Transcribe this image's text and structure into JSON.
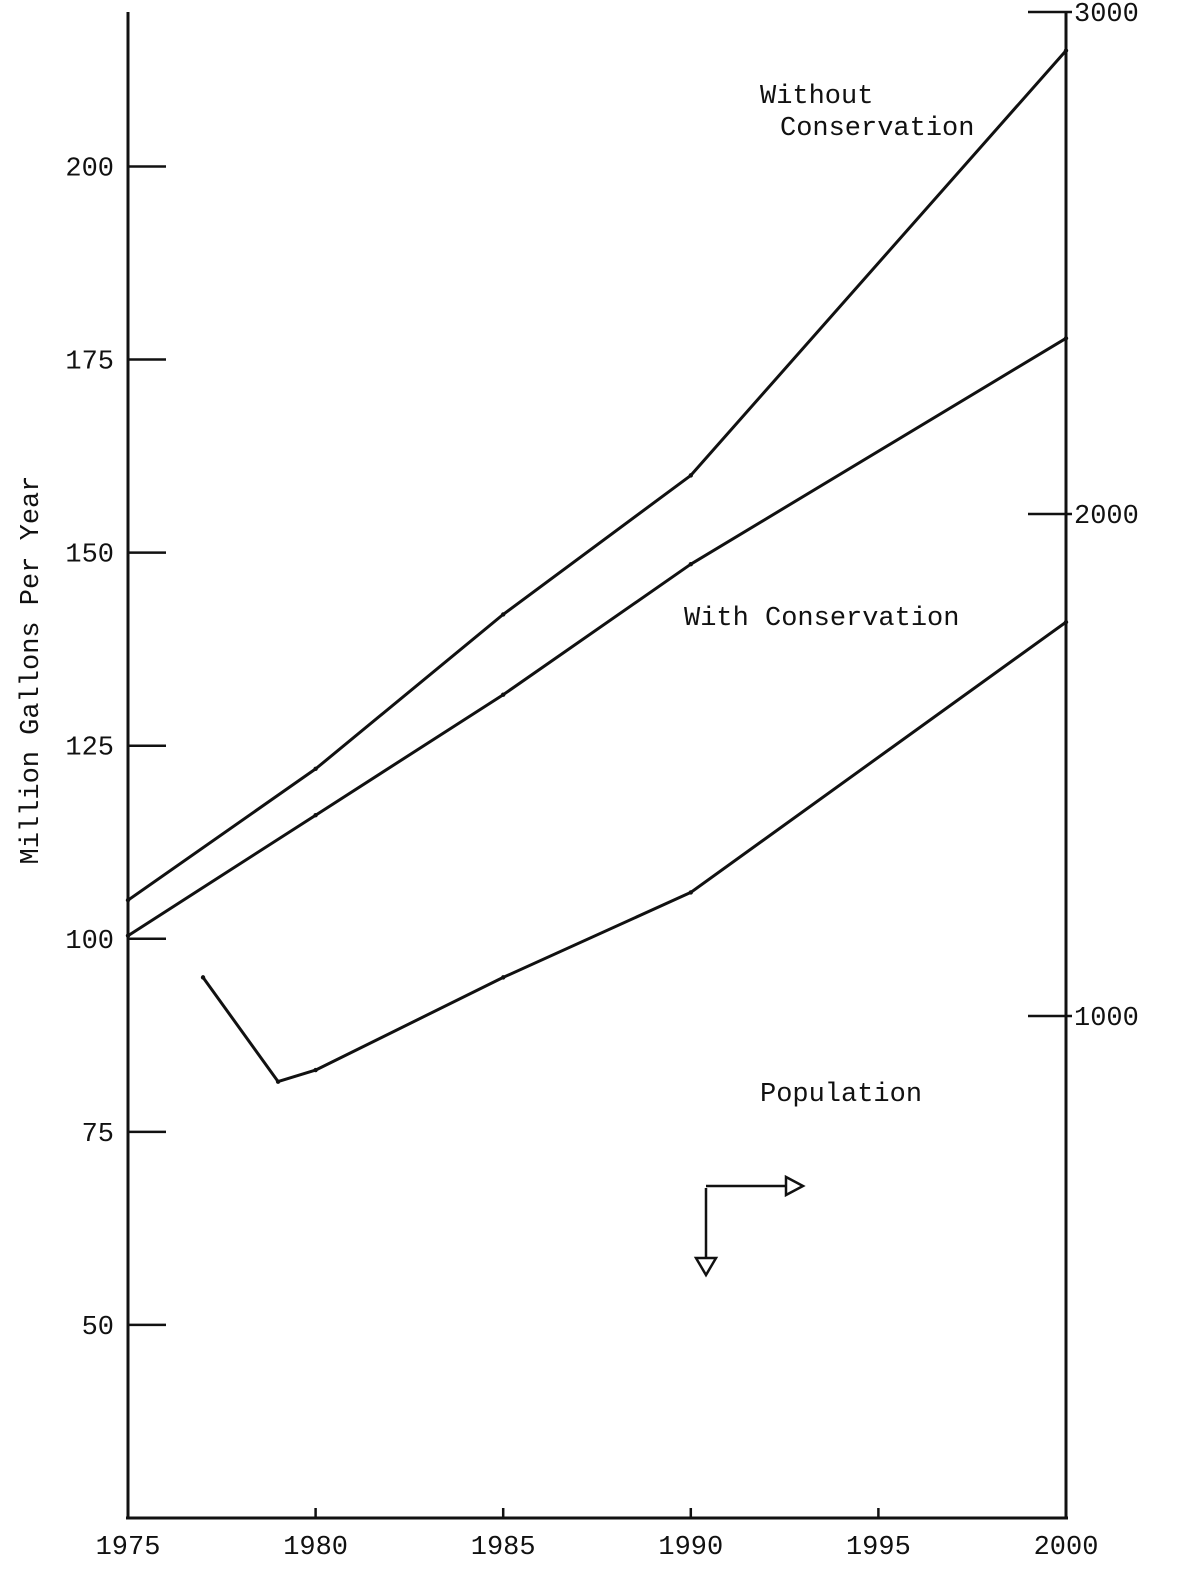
{
  "chart_data": {
    "type": "line",
    "title": "",
    "xlabel": "",
    "ylabel": "Million Gallons Per Year",
    "y2label": "",
    "xlim": [
      1975,
      2000
    ],
    "ylim": [
      25,
      220
    ],
    "y2lim": [
      0,
      3000
    ],
    "grid": false,
    "x_ticks": [
      "1975",
      "1980",
      "1985",
      "1990",
      "1995",
      "2000"
    ],
    "y_ticks": [
      "50",
      "75",
      "100",
      "125",
      "150",
      "175",
      "200"
    ],
    "y2_ticks": [
      "1000",
      "2000",
      "3000"
    ],
    "series": [
      {
        "name": "Without Conservation",
        "label_lines": [
          "Without",
          "Conservation"
        ],
        "axis": "left",
        "x": [
          1975,
          1980,
          1985,
          1990,
          2000
        ],
        "y": [
          105,
          122,
          142,
          160,
          215
        ]
      },
      {
        "name": "With Conservation",
        "label_lines": [
          "With Conservation"
        ],
        "axis": "left",
        "x": [
          1977,
          1979,
          1980,
          1985,
          1990,
          2000
        ],
        "y": [
          95,
          81.5,
          83,
          95,
          106,
          141
        ]
      },
      {
        "name": "Population",
        "label_lines": [
          "Population"
        ],
        "axis": "right",
        "x": [
          1975,
          1980,
          1985,
          1990,
          2000
        ],
        "y": [
          1160,
          1400,
          1640,
          1900,
          2350
        ]
      }
    ]
  }
}
